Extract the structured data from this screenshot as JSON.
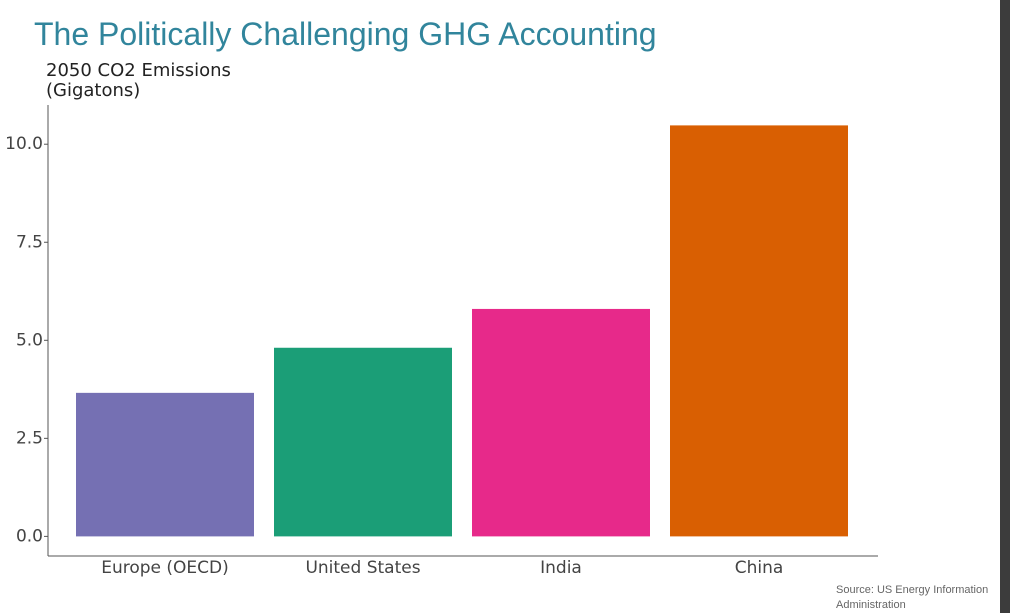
{
  "chart_data": {
    "type": "bar",
    "title": "The Politically Challenging GHG Accounting",
    "y_label": [
      "2050 CO2 Emissions",
      "(Gigatons)"
    ],
    "source": [
      "Source: US Energy Information",
      "Administration"
    ],
    "categories": [
      "Europe (OECD)",
      "United States",
      "India",
      "China"
    ],
    "values": [
      3.66,
      4.81,
      5.8,
      10.48
    ],
    "colors": [
      "#7570b3",
      "#1b9e77",
      "#e7298a",
      "#d95f02"
    ],
    "ylim": [
      -0.5,
      11
    ],
    "yticks": [
      {
        "value": 0,
        "label": "0.0"
      },
      2.5,
      {
        "value": 5,
        "label": "5.0"
      },
      7.5,
      {
        "value": 10,
        "label": "10.0"
      }
    ],
    "grid": false
  }
}
